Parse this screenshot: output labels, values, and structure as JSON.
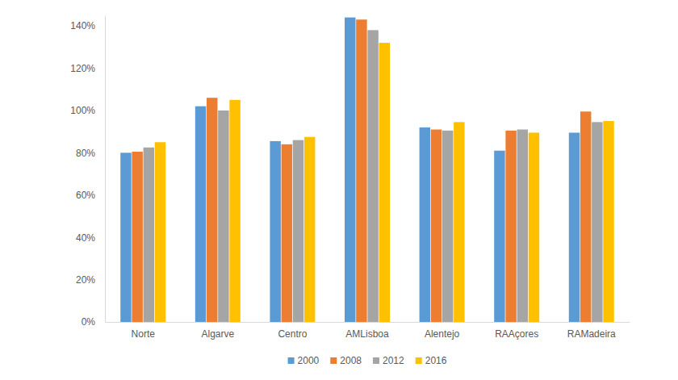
{
  "chart_data": {
    "type": "bar",
    "categories": [
      "Norte",
      "Algarve",
      "Centro",
      "AMLisboa",
      "Alentejo",
      "RAAçores",
      "RAMadeira"
    ],
    "series": [
      {
        "name": "2000",
        "color": "#5b9bd5",
        "values": [
          80,
          102,
          85.5,
          144,
          92,
          81,
          89.5
        ]
      },
      {
        "name": "2008",
        "color": "#ed7d31",
        "values": [
          80.5,
          106,
          84,
          143,
          91,
          90.5,
          99.5
        ]
      },
      {
        "name": "2012",
        "color": "#a5a5a5",
        "values": [
          82.5,
          100,
          86,
          138,
          90.5,
          91,
          94.5
        ]
      },
      {
        "name": "2016",
        "color": "#ffc000",
        "values": [
          85,
          105,
          87.5,
          132,
          94.5,
          89.5,
          95
        ]
      }
    ],
    "ylim": [
      0,
      145
    ],
    "yticks": [
      {
        "value": 0,
        "label": "0%"
      },
      {
        "value": 20,
        "label": "20%"
      },
      {
        "value": 40,
        "label": "40%"
      },
      {
        "value": 60,
        "label": "60%"
      },
      {
        "value": 80,
        "label": "80%"
      },
      {
        "value": 100,
        "label": "100%"
      },
      {
        "value": 120,
        "label": "120%"
      },
      {
        "value": 140,
        "label": "140%"
      }
    ],
    "grid": false,
    "legend": "bottom"
  }
}
